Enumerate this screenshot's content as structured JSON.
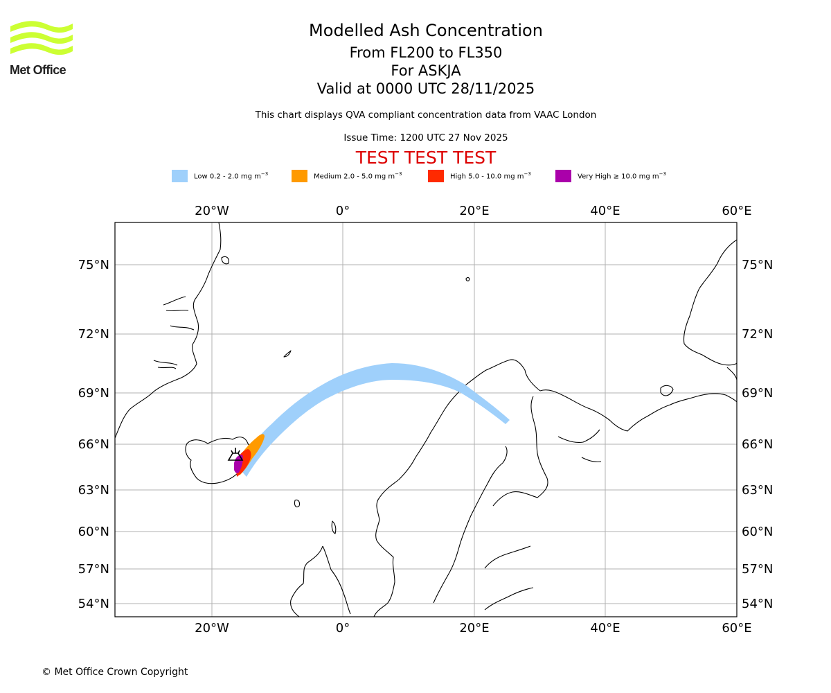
{
  "header": {
    "logo_text": "Met Office",
    "title": "Modelled Ash Concentration",
    "level_range": "From FL200 to FL350",
    "volcano": "For ASKJA",
    "valid_time": "Valid at 0000 UTC 28/11/2025",
    "note": "This chart displays QVA compliant concentration data from VAAC London",
    "issue_time": "Issue Time: 1200 UTC 27 Nov 2025",
    "test_banner": "TEST TEST TEST"
  },
  "legend": [
    {
      "label": "Low 0.2 - 2.0 mg m",
      "exp": "−3",
      "color": "#9fd0fb"
    },
    {
      "label": "Medium 2.0 - 5.0 mg m",
      "exp": "−3",
      "color": "#ff9a00"
    },
    {
      "label": "High 5.0 - 10.0 mg m",
      "exp": "−3",
      "color": "#ff2a00"
    },
    {
      "label": "Very High ≥ 10.0 mg m",
      "exp": "−3",
      "color": "#aa00aa"
    }
  ],
  "map": {
    "lon_ticks": [
      "20°W",
      "0°",
      "20°E",
      "40°E",
      "60°E"
    ],
    "lat_ticks": [
      "75°N",
      "72°N",
      "69°N",
      "66°N",
      "63°N",
      "60°N",
      "57°N",
      "54°N"
    ],
    "volcano_symbol": "volcano-marker"
  },
  "footer": {
    "copyright": "© Met Office Crown Copyright"
  }
}
